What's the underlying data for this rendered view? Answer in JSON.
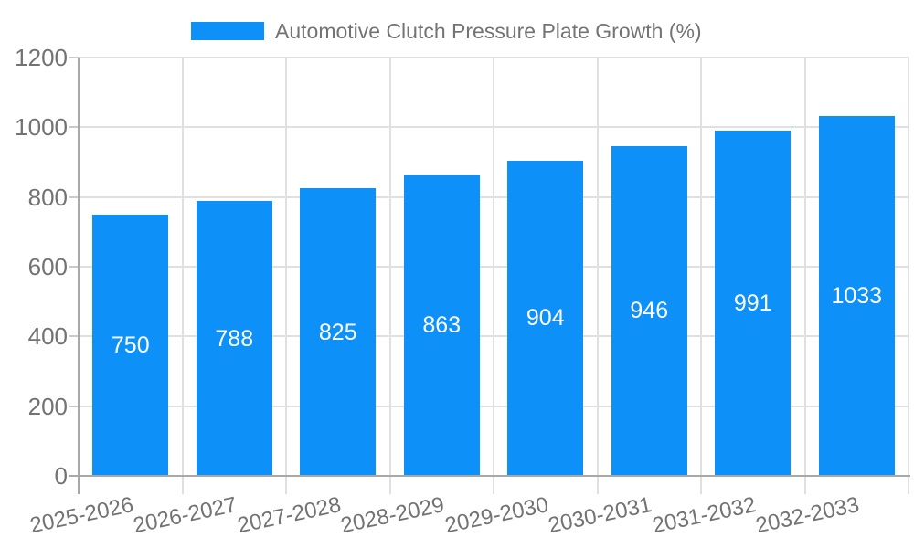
{
  "legend": {
    "label": "Automotive Clutch Pressure Plate Growth (%)"
  },
  "chart_data": {
    "type": "bar",
    "title": "",
    "xlabel": "",
    "ylabel": "",
    "categories": [
      "2025-2026",
      "2026-2027",
      "2027-2028",
      "2028-2029",
      "2029-2030",
      "2030-2031",
      "2031-2032",
      "2032-2033"
    ],
    "series": [
      {
        "name": "Automotive Clutch Pressure Plate Growth (%)",
        "values": [
          750,
          788,
          825,
          863,
          904,
          946,
          991,
          1033
        ]
      }
    ],
    "value_labels": "inside-center",
    "ylim": [
      0,
      1200
    ],
    "yticks": [
      0,
      200,
      400,
      600,
      800,
      1000,
      1200
    ],
    "grid": true,
    "legend_position": "top-center",
    "x_label_rotation_deg": -12,
    "colors": {
      "bar": "#0d90f8",
      "value_label": "#ffffff",
      "axis_text": "#737373",
      "gridline": "#e0e0e0",
      "axis_line": "#a8a8a8",
      "tick": "#c9c9c9",
      "background": "#ffffff"
    }
  }
}
